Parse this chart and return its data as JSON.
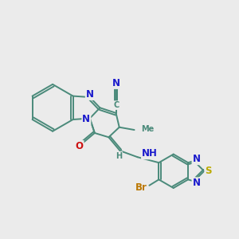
{
  "bg_color": "#ebebeb",
  "bond_color": "#4a8a7a",
  "bond_width": 1.4,
  "atom_colors": {
    "N": "#1a1acc",
    "O": "#cc1111",
    "Br": "#bb7700",
    "S": "#bbaa00",
    "C": "#4a8a7a",
    "H": "#4a8a7a"
  },
  "fs": 8.5,
  "fs2": 7.0
}
